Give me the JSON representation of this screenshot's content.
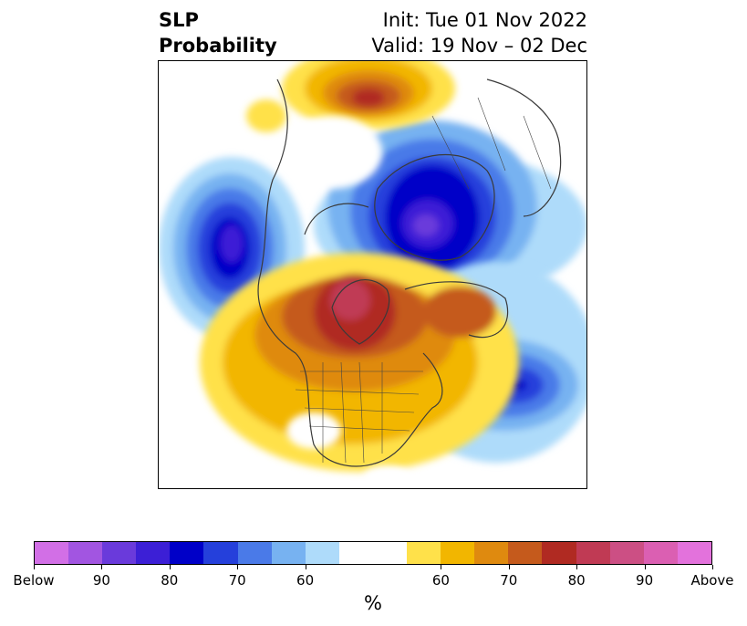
{
  "header": {
    "title_line1": "SLP",
    "title_line2": "Probability",
    "init_text": "Init: Tue 01 Nov 2022",
    "valid_text": "Valid: 19 Nov – 02 Dec"
  },
  "colorbar": {
    "colors": [
      "#d26fe6",
      "#a255e1",
      "#6a3adb",
      "#3c1fd6",
      "#0000c8",
      "#2540db",
      "#4a7ae8",
      "#77b2f1",
      "#aedbfa",
      "#ffffff",
      "#ffffff",
      "#ffe14a",
      "#f2b600",
      "#df8a0f",
      "#c55a1c",
      "#b02a22",
      "#c03a54",
      "#cc4f84",
      "#db5fb2",
      "#e372dc"
    ],
    "tick_labels": [
      "Below",
      "90",
      "80",
      "70",
      "60",
      "60",
      "70",
      "80",
      "90",
      "Above"
    ],
    "unit_label": "%"
  }
}
